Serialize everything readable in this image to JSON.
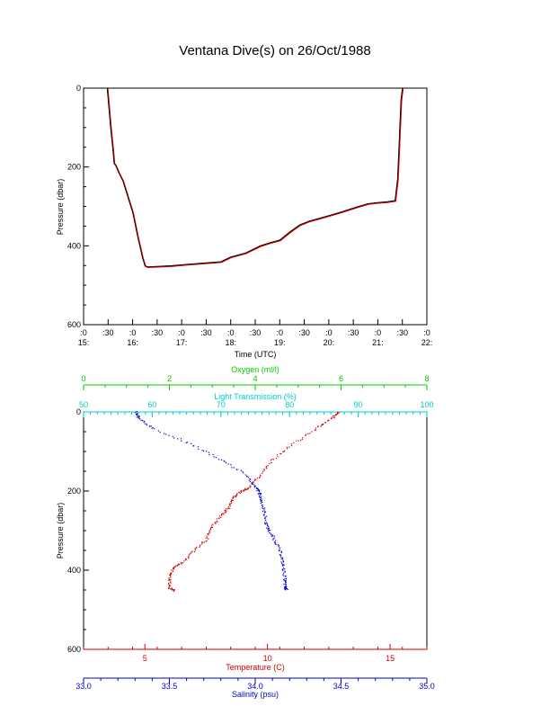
{
  "title": "Ventana Dive(s) on 26/Oct/1988",
  "colors": {
    "axis": "#000000",
    "temperature": "#cc0000",
    "salinity": "#0000cc",
    "oxygen": "#00cc00",
    "light": "#00cccc",
    "trace_primary": "#000000",
    "trace_secondary": "#cc0000"
  },
  "chart_data": [
    {
      "type": "line",
      "xlabel": "Time (UTC)",
      "ylabel": "Pressure (dbar)",
      "x_unit": "hours UTC",
      "xlim": [
        15.0,
        22.0
      ],
      "ylim": [
        600,
        0
      ],
      "y_ticks": [
        "0",
        "200",
        "400",
        "600"
      ],
      "x_ticks": [
        {
          "top": ":0",
          "bottom": "15:"
        },
        {
          "top": ":30",
          "bottom": ""
        },
        {
          "top": ":0",
          "bottom": "16:"
        },
        {
          "top": ":30",
          "bottom": ""
        },
        {
          "top": ":0",
          "bottom": "17:"
        },
        {
          "top": ":30",
          "bottom": ""
        },
        {
          "top": ":0",
          "bottom": "18:"
        },
        {
          "top": ":30",
          "bottom": ""
        },
        {
          "top": ":0",
          "bottom": "19:"
        },
        {
          "top": ":30",
          "bottom": ""
        },
        {
          "top": ":0",
          "bottom": "20:"
        },
        {
          "top": ":30",
          "bottom": ""
        },
        {
          "top": ":0",
          "bottom": "21:"
        },
        {
          "top": ":30",
          "bottom": ""
        },
        {
          "top": ":0",
          "bottom": "22:"
        }
      ],
      "series": [
        {
          "x": [
            15.48,
            15.55,
            15.6,
            15.62,
            15.65,
            15.72,
            15.8,
            15.9,
            16.0,
            16.1,
            16.2,
            16.25,
            16.3,
            16.5,
            16.8,
            17.1,
            17.5,
            17.8,
            18.0,
            18.3,
            18.6,
            18.8,
            19.0,
            19.2,
            19.4,
            19.6,
            19.8,
            20.0,
            20.3,
            20.6,
            20.8,
            21.0,
            21.2,
            21.35,
            21.4,
            21.44,
            21.47,
            21.5
          ],
          "y": [
            0,
            100,
            160,
            190,
            195,
            215,
            235,
            275,
            315,
            375,
            430,
            450,
            453,
            452,
            450,
            447,
            443,
            440,
            428,
            418,
            400,
            392,
            385,
            365,
            347,
            337,
            330,
            323,
            312,
            300,
            293,
            290,
            288,
            285,
            230,
            120,
            30,
            0
          ]
        }
      ]
    },
    {
      "type": "scatter",
      "ylabel": "Pressure (dbar)",
      "ylim": [
        600,
        0
      ],
      "y_ticks": [
        "0",
        "200",
        "400",
        "600"
      ],
      "axes": {
        "temperature": {
          "label": "Temperature (C)",
          "range": [
            2.5,
            16.5
          ],
          "ticks": [
            "5",
            "10",
            "15"
          ],
          "tick_values": [
            5,
            10,
            15
          ]
        },
        "salinity": {
          "label": "Salinity (psu)",
          "range": [
            33.0,
            35.0
          ],
          "ticks": [
            "33.0",
            "33.5",
            "34.0",
            "34.5",
            "35.0"
          ],
          "tick_values": [
            33.0,
            33.5,
            34.0,
            34.5,
            35.0
          ]
        },
        "oxygen": {
          "label": "Oxygen (ml/l)",
          "range": [
            0,
            8
          ],
          "ticks": [
            "0",
            "2",
            "4",
            "6",
            "8"
          ],
          "tick_values": [
            0,
            2,
            4,
            6,
            8
          ]
        },
        "light": {
          "label": "Light Transmission (%)",
          "range": [
            50,
            100
          ],
          "ticks": [
            "50",
            "60",
            "70",
            "80",
            "90",
            "100"
          ],
          "tick_values": [
            50,
            60,
            70,
            80,
            90,
            100
          ]
        }
      },
      "series": [
        {
          "name": "Temperature (C)",
          "axis": "temperature",
          "p": [
            0,
            15,
            40,
            80,
            120,
            160,
            190,
            200,
            215,
            240,
            260,
            290,
            320,
            350,
            380,
            395,
            420,
            445,
            450
          ],
          "v": [
            12.9,
            12.6,
            12.0,
            11.0,
            10.2,
            9.7,
            9.2,
            8.9,
            8.6,
            8.4,
            8.1,
            7.7,
            7.5,
            7.0,
            6.5,
            6.1,
            6.0,
            6.0,
            6.2
          ]
        },
        {
          "name": "Salinity (psu)",
          "axis": "salinity",
          "p": [
            0,
            15,
            40,
            80,
            120,
            160,
            190,
            200,
            220,
            250,
            280,
            300,
            330,
            360,
            390,
            420,
            440,
            450
          ],
          "v": [
            33.3,
            33.32,
            33.4,
            33.62,
            33.8,
            33.95,
            34.0,
            34.02,
            34.03,
            34.05,
            34.06,
            34.08,
            34.12,
            34.15,
            34.16,
            34.17,
            34.17,
            34.18
          ]
        }
      ]
    }
  ]
}
